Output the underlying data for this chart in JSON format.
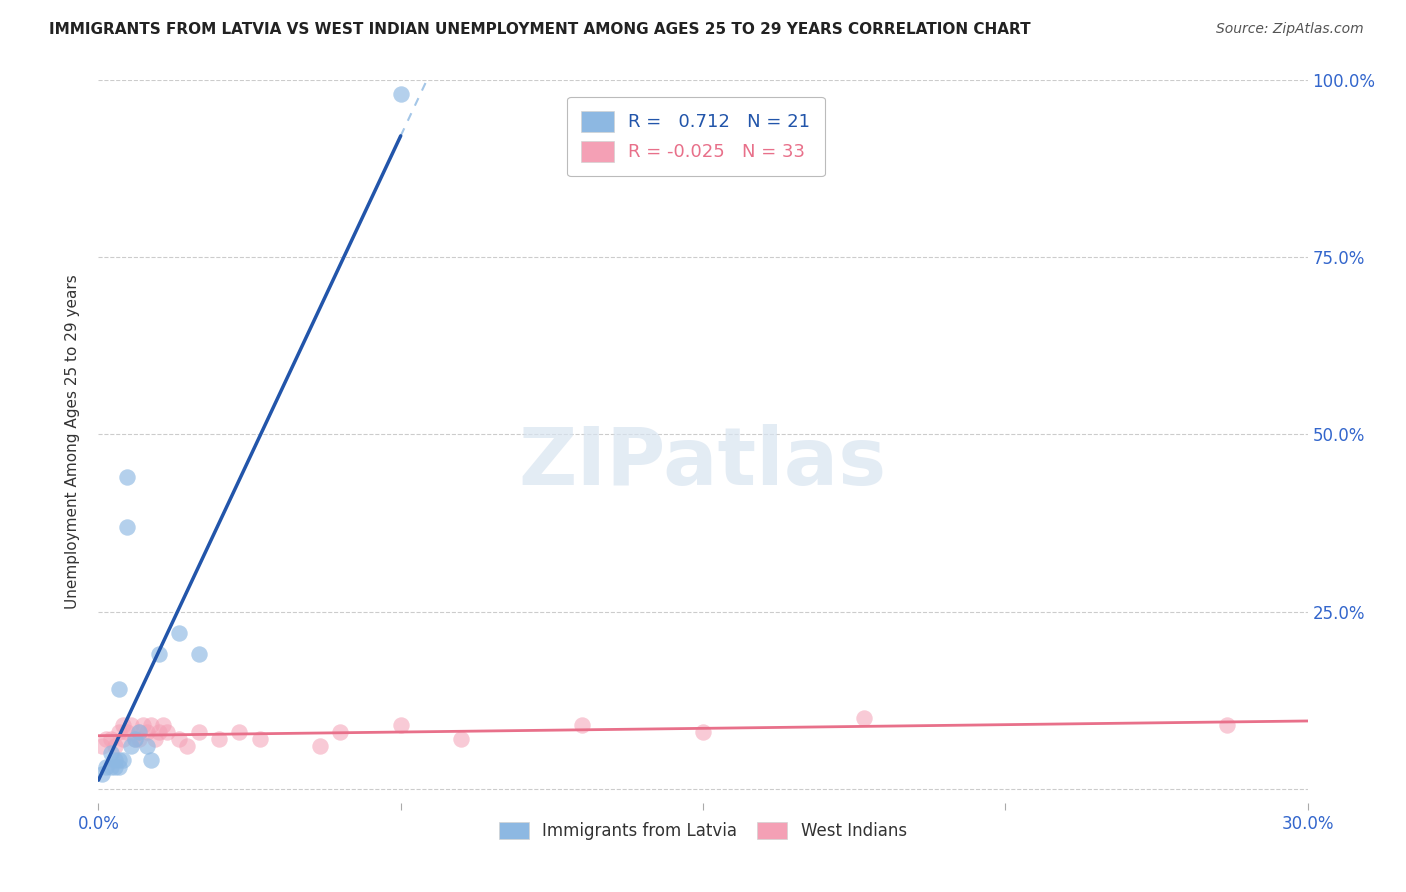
{
  "title": "IMMIGRANTS FROM LATVIA VS WEST INDIAN UNEMPLOYMENT AMONG AGES 25 TO 29 YEARS CORRELATION CHART",
  "source": "Source: ZipAtlas.com",
  "ylabel": "Unemployment Among Ages 25 to 29 years",
  "xlim": [
    0.0,
    0.3
  ],
  "ylim": [
    -0.02,
    1.0
  ],
  "xticks": [
    0.0,
    0.075,
    0.15,
    0.225,
    0.3
  ],
  "xtick_labels": [
    "0.0%",
    "",
    "",
    "",
    "30.0%"
  ],
  "ytick_labels_right": [
    "100.0%",
    "75.0%",
    "50.0%",
    "25.0%",
    ""
  ],
  "yticks": [
    1.0,
    0.75,
    0.5,
    0.25,
    0.0
  ],
  "R_blue": 0.712,
  "N_blue": 21,
  "R_pink": -0.025,
  "N_pink": 33,
  "blue_color": "#8DB8E2",
  "pink_color": "#F4A0B5",
  "blue_line_color": "#2255AA",
  "pink_line_color": "#E8708A",
  "blue_scatter_x": [
    0.001,
    0.002,
    0.003,
    0.003,
    0.004,
    0.004,
    0.005,
    0.005,
    0.005,
    0.006,
    0.007,
    0.007,
    0.008,
    0.009,
    0.01,
    0.012,
    0.013,
    0.015,
    0.02,
    0.025,
    0.075
  ],
  "blue_scatter_y": [
    0.02,
    0.03,
    0.03,
    0.05,
    0.03,
    0.04,
    0.14,
    0.04,
    0.03,
    0.04,
    0.44,
    0.37,
    0.06,
    0.07,
    0.08,
    0.06,
    0.04,
    0.19,
    0.22,
    0.19,
    0.98
  ],
  "pink_scatter_x": [
    0.001,
    0.002,
    0.003,
    0.004,
    0.005,
    0.006,
    0.006,
    0.007,
    0.008,
    0.009,
    0.01,
    0.01,
    0.011,
    0.012,
    0.013,
    0.014,
    0.015,
    0.016,
    0.017,
    0.02,
    0.022,
    0.025,
    0.03,
    0.035,
    0.04,
    0.055,
    0.06,
    0.075,
    0.09,
    0.12,
    0.15,
    0.19,
    0.28
  ],
  "pink_scatter_y": [
    0.06,
    0.07,
    0.07,
    0.06,
    0.08,
    0.09,
    0.07,
    0.08,
    0.09,
    0.07,
    0.08,
    0.07,
    0.09,
    0.08,
    0.09,
    0.07,
    0.08,
    0.09,
    0.08,
    0.07,
    0.06,
    0.08,
    0.07,
    0.08,
    0.07,
    0.06,
    0.08,
    0.09,
    0.07,
    0.09,
    0.08,
    0.1,
    0.09
  ],
  "blue_line_x_start": 0.0,
  "blue_line_x_solid_end": 0.075,
  "blue_line_x_dash_end": 0.3,
  "pink_line_x_start": 0.0,
  "pink_line_x_end": 0.3,
  "background_color": "#FFFFFF",
  "grid_color": "#CCCCCC"
}
